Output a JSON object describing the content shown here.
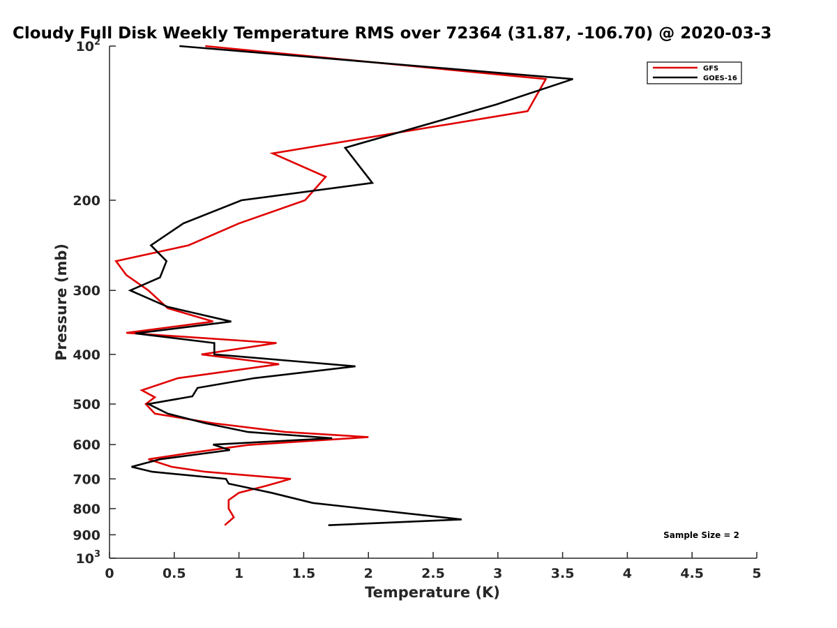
{
  "chart_data": {
    "type": "line",
    "title": "Cloudy Full Disk Weekly Temperature RMS over 72364 (31.87, -106.70) @ 2020-03-3",
    "xlabel": "Temperature (K)",
    "ylabel": "Pressure (mb)",
    "xlim": [
      0,
      5
    ],
    "ylim": [
      100,
      1000
    ],
    "y_scale": "log",
    "y_reversed": true,
    "x_ticks": [
      "0",
      "0.5",
      "1",
      "1.5",
      "2",
      "2.5",
      "3",
      "3.5",
      "4",
      "4.5",
      "5"
    ],
    "y_ticks": [
      {
        "value": 100,
        "base": "10",
        "exp": "2"
      },
      {
        "value": 200,
        "label": "200"
      },
      {
        "value": 300,
        "label": "300"
      },
      {
        "value": 400,
        "label": "400"
      },
      {
        "value": 500,
        "label": "500"
      },
      {
        "value": 600,
        "label": "600"
      },
      {
        "value": 700,
        "label": "700"
      },
      {
        "value": 800,
        "label": "800"
      },
      {
        "value": 900,
        "label": "900"
      },
      {
        "value": 1000,
        "base": "10",
        "exp": "3"
      }
    ],
    "legend_position": "top-right",
    "annotation": "Sample Size = 2",
    "series": [
      {
        "name": "GFS",
        "color": "#e00000",
        "points": [
          [
            0.74,
            100
          ],
          [
            3.37,
            116
          ],
          [
            3.23,
            134
          ],
          [
            1.26,
            162
          ],
          [
            1.67,
            180
          ],
          [
            1.51,
            200
          ],
          [
            1.0,
            222
          ],
          [
            0.61,
            245
          ],
          [
            0.05,
            263
          ],
          [
            0.13,
            280
          ],
          [
            0.3,
            300
          ],
          [
            0.45,
            325
          ],
          [
            0.8,
            345
          ],
          [
            0.13,
            363
          ],
          [
            1.29,
            380
          ],
          [
            0.71,
            400
          ],
          [
            1.31,
            418
          ],
          [
            0.53,
            445
          ],
          [
            0.25,
            470
          ],
          [
            0.35,
            485
          ],
          [
            0.28,
            500
          ],
          [
            0.35,
            522
          ],
          [
            0.8,
            545
          ],
          [
            1.36,
            567
          ],
          [
            2.0,
            580
          ],
          [
            1.07,
            601
          ],
          [
            0.62,
            623
          ],
          [
            0.3,
            641
          ],
          [
            0.48,
            663
          ],
          [
            0.74,
            678
          ],
          [
            1.4,
            700
          ],
          [
            1.21,
            722
          ],
          [
            1.0,
            745
          ],
          [
            0.92,
            770
          ],
          [
            0.92,
            800
          ],
          [
            0.96,
            832
          ],
          [
            0.89,
            862
          ]
        ]
      },
      {
        "name": "GOES-16",
        "color": "#000000",
        "points": [
          [
            0.54,
            100
          ],
          [
            3.58,
            116
          ],
          [
            2.99,
            130
          ],
          [
            1.82,
            158
          ],
          [
            2.03,
            185
          ],
          [
            1.02,
            200
          ],
          [
            0.57,
            222
          ],
          [
            0.32,
            245
          ],
          [
            0.44,
            263
          ],
          [
            0.39,
            283
          ],
          [
            0.16,
            300
          ],
          [
            0.45,
            323
          ],
          [
            0.94,
            345
          ],
          [
            0.2,
            364
          ],
          [
            0.81,
            380
          ],
          [
            0.81,
            400
          ],
          [
            1.9,
            422
          ],
          [
            1.12,
            445
          ],
          [
            0.68,
            465
          ],
          [
            0.64,
            483
          ],
          [
            0.3,
            500
          ],
          [
            0.45,
            522
          ],
          [
            0.74,
            545
          ],
          [
            1.07,
            567
          ],
          [
            1.72,
            583
          ],
          [
            0.8,
            600
          ],
          [
            0.93,
            615
          ],
          [
            0.39,
            641
          ],
          [
            0.17,
            663
          ],
          [
            0.33,
            678
          ],
          [
            0.9,
            700
          ],
          [
            0.92,
            715
          ],
          [
            1.25,
            745
          ],
          [
            1.57,
            780
          ],
          [
            2.72,
            840
          ],
          [
            1.69,
            862
          ]
        ]
      }
    ]
  }
}
